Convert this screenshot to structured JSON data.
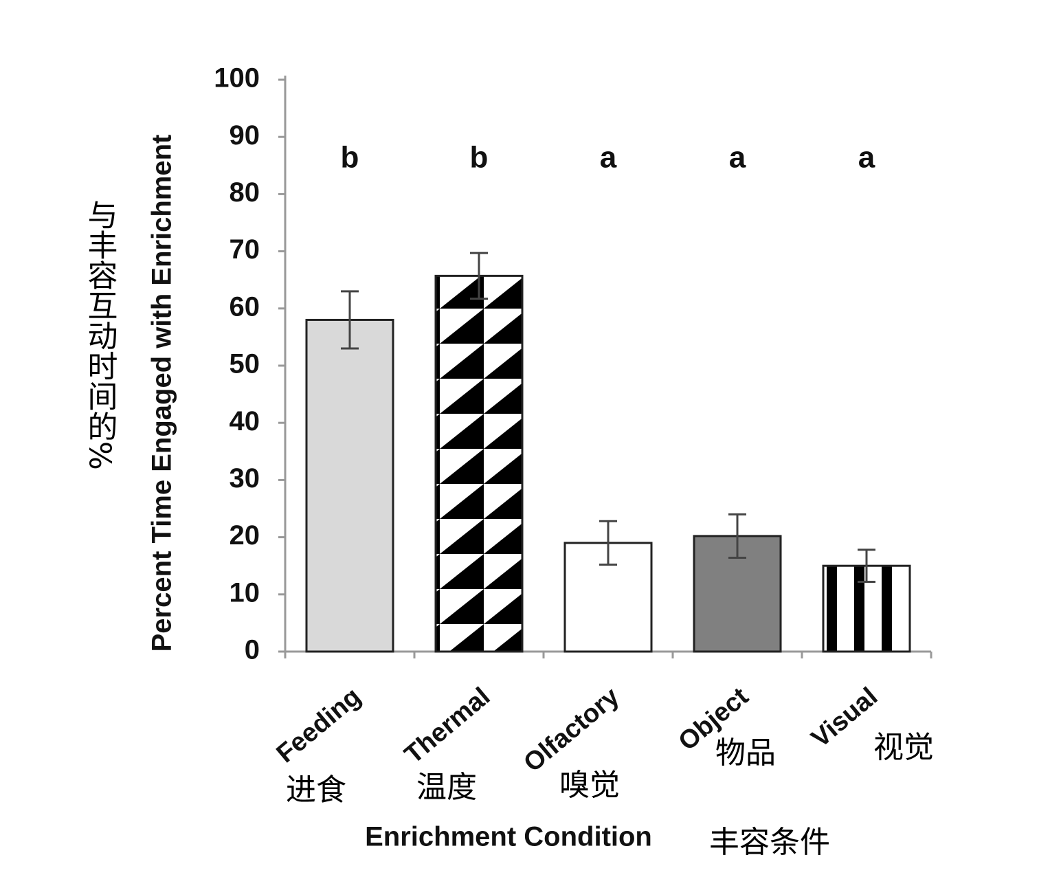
{
  "chart_data": {
    "type": "bar",
    "y_label": "Percent Time Engaged with Enrichment",
    "y_label_translation": "与丰容互动时间的%",
    "x_label": "Enrichment Condition",
    "x_label_translation": "丰容条件",
    "categories": [
      "Feeding",
      "Thermal",
      "Olfactory",
      "Object",
      "Visual"
    ],
    "category_translations": [
      "进食",
      "温度",
      "嗅觉",
      "物品",
      "视觉"
    ],
    "values": [
      58,
      65.7,
      19,
      20.2,
      15
    ],
    "errors": [
      5,
      4,
      3.8,
      3.8,
      2.8
    ],
    "significance": [
      "b",
      "b",
      "a",
      "a",
      "a"
    ],
    "fills": [
      "#d9d9d9",
      "triangles",
      "#ffffff",
      "#808080",
      "stripes"
    ],
    "ylim": [
      0,
      100
    ],
    "yticks": [
      0,
      10,
      20,
      30,
      40,
      50,
      60,
      70,
      80,
      90,
      100
    ]
  }
}
